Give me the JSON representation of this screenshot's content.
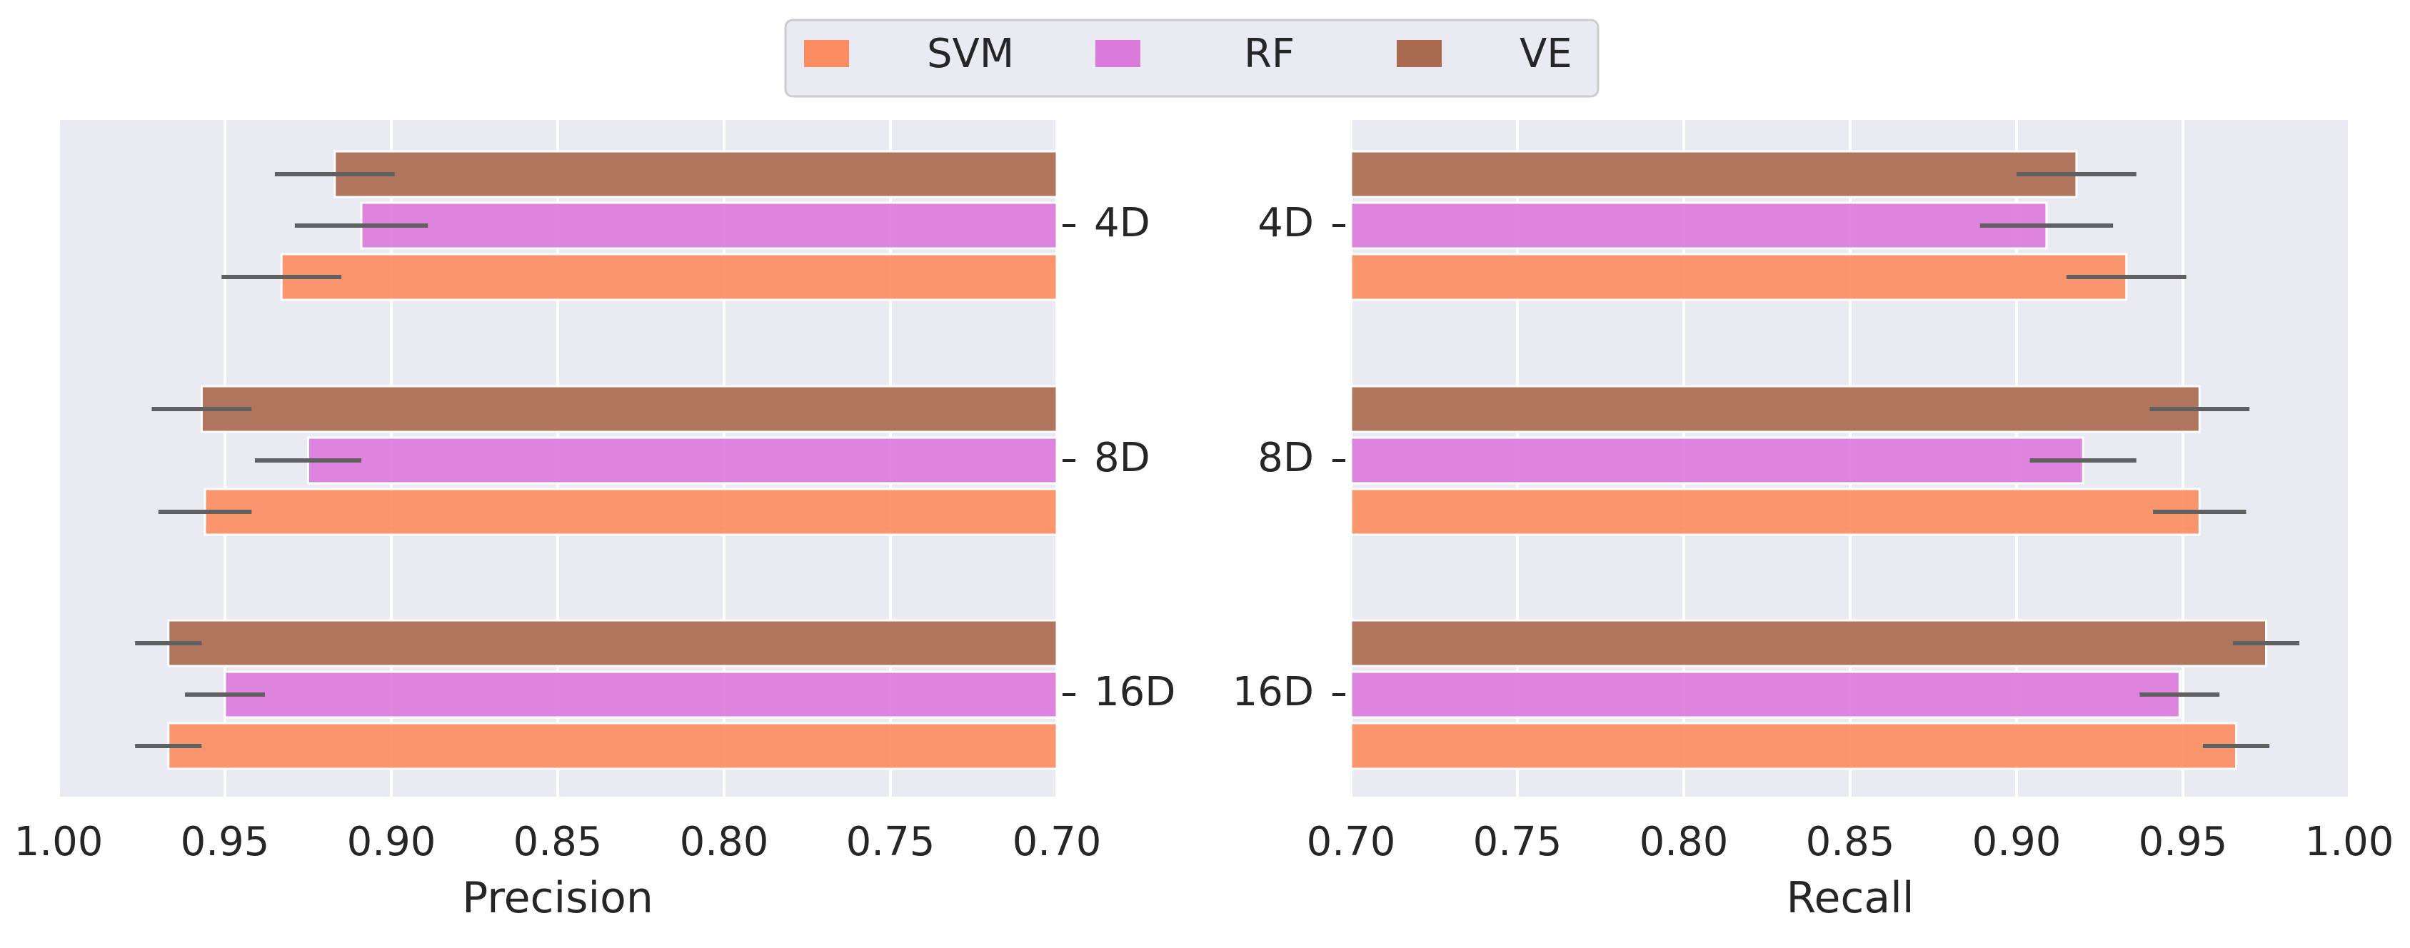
{
  "chart_data": [
    {
      "type": "bar",
      "orientation": "horizontal",
      "panel": "precision",
      "xlabel": "Precision",
      "xlim": [
        1.0,
        0.7
      ],
      "xticks": [
        "1.00",
        "0.95",
        "0.90",
        "0.85",
        "0.80",
        "0.75",
        "0.70"
      ],
      "tick_values": [
        1.0,
        0.95,
        0.9,
        0.85,
        0.8,
        0.75,
        0.7
      ],
      "categories": [
        "4D",
        "8D",
        "16D"
      ],
      "series": [
        {
          "name": "SVM",
          "values": [
            0.933,
            0.956,
            0.967
          ],
          "errors": [
            0.018,
            0.014,
            0.01
          ]
        },
        {
          "name": "RF",
          "values": [
            0.909,
            0.925,
            0.95
          ],
          "errors": [
            0.02,
            0.016,
            0.012
          ]
        },
        {
          "name": "VE",
          "values": [
            0.917,
            0.957,
            0.967
          ],
          "errors": [
            0.018,
            0.015,
            0.01
          ]
        }
      ]
    },
    {
      "type": "bar",
      "orientation": "horizontal",
      "panel": "recall",
      "xlabel": "Recall",
      "xlim": [
        0.7,
        1.0
      ],
      "xticks": [
        "0.70",
        "0.75",
        "0.80",
        "0.85",
        "0.90",
        "0.95",
        "1.00"
      ],
      "tick_values": [
        0.7,
        0.75,
        0.8,
        0.85,
        0.9,
        0.95,
        1.0
      ],
      "categories": [
        "4D",
        "8D",
        "16D"
      ],
      "series": [
        {
          "name": "SVM",
          "values": [
            0.933,
            0.955,
            0.966
          ],
          "errors": [
            0.018,
            0.014,
            0.01
          ]
        },
        {
          "name": "RF",
          "values": [
            0.909,
            0.92,
            0.949
          ],
          "errors": [
            0.02,
            0.016,
            0.012
          ]
        },
        {
          "name": "VE",
          "values": [
            0.918,
            0.955,
            0.975
          ],
          "errors": [
            0.018,
            0.015,
            0.01
          ]
        }
      ]
    }
  ],
  "legend": {
    "position": "top-center",
    "items": [
      {
        "name": "SVM",
        "color": "#fc8d62"
      },
      {
        "name": "RF",
        "color": "#da7bdc"
      },
      {
        "name": "VE",
        "color": "#aa6a50"
      }
    ]
  },
  "colors": {
    "background": "#eaeaf2",
    "grid": "#ffffff",
    "error_bar": "#606060",
    "text": "#262626"
  }
}
